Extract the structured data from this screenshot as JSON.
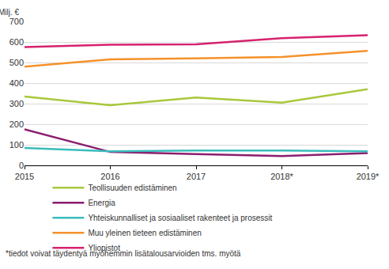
{
  "chart_data": {
    "type": "line",
    "y_label": "Milj. €",
    "categories": [
      "2015",
      "2016",
      "2017",
      "2018*",
      "2019*"
    ],
    "series": [
      {
        "name": "Teollisuuden edistäminen",
        "color": "#a8c83c",
        "values": [
          335,
          292,
          330,
          305,
          370
        ]
      },
      {
        "name": "Energia",
        "color": "#8c1d6e",
        "values": [
          175,
          65,
          55,
          45,
          60
        ]
      },
      {
        "name": "Yhteiskunnalliset ja sosiaaliset rakenteet ja prosessit",
        "color": "#3cbcbc",
        "values": [
          85,
          68,
          72,
          72,
          68
        ]
      },
      {
        "name": "Muu yleinen tieteen edistäminen",
        "color": "#f5922b",
        "values": [
          480,
          515,
          520,
          527,
          557
        ]
      },
      {
        "name": "Yliopistot",
        "color": "#d6226e",
        "values": [
          575,
          587,
          588,
          618,
          633
        ]
      }
    ],
    "ylim": [
      0,
      700
    ],
    "yticks": [
      0,
      100,
      200,
      300,
      400,
      500,
      600,
      700
    ],
    "grid": true,
    "legend": "bottom",
    "annotations": [
      "*tiedot voivat täydentyä myöhemmin lisätalousarvioiden tms. myötä"
    ]
  }
}
